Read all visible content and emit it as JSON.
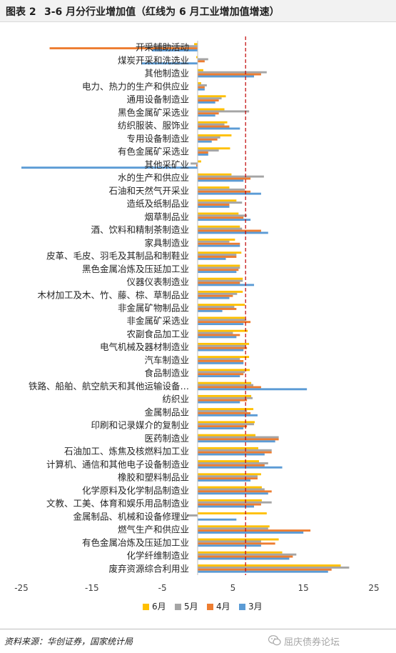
{
  "figure": {
    "label": "图表 2",
    "title": "3-6 月分行业增加值（红线为 6 月工业增加值增速）",
    "source": "资料来源：华创证券，国家统计局",
    "watermark": "屈庆债券论坛"
  },
  "chart_data": {
    "type": "bar",
    "orientation": "horizontal",
    "categories": [
      "开采辅助活动",
      "煤炭开采和洗选业",
      "其他制造业",
      "电力、热力的生产和供应业",
      "通用设备制造业",
      "黑色金属矿采选业",
      "纺织服装、服饰业",
      "专用设备制造业",
      "有色金属矿采选业",
      "其他采矿业",
      "水的生产和供应业",
      "石油和天然气开采业",
      "造纸及纸制品业",
      "烟草制品业",
      "酒、饮料和精制茶制造业",
      "家具制造业",
      "皮革、毛皮、羽毛及其制品和制鞋业",
      "黑色金属冶炼及压延加工业",
      "仪器仪表制造业",
      "木材加工及木、竹、藤、棕、草制品业",
      "非金属矿物制品业",
      "非金属矿采选业",
      "农副食品加工业",
      "电气机械及器材制造业",
      "汽车制造业",
      "食品制造业",
      "铁路、船舶、航空航天和其他运输设备…",
      "纺织业",
      "金属制品业",
      "印刷和记录媒介的复制业",
      "医药制造业",
      "石油加工、炼焦及核燃料加工业",
      "计算机、通信和其他电子设备制造业",
      "橡胶和塑料制品业",
      "化学原料及化学制品制造业",
      "文教、工美、体育和娱乐用品制造业",
      "金属制品、机械和设备修理业",
      "燃气生产和供应业",
      "有色金属冶炼及压延加工业",
      "化学纤维制造业",
      "废弃资源综合利用业"
    ],
    "series": [
      {
        "name": "6月",
        "color": "#FFC000",
        "values": [
          -0.5,
          -0.2,
          0.8,
          0.5,
          4.0,
          3.8,
          4.2,
          4.8,
          4.6,
          0.5,
          4.8,
          4.5,
          5.5,
          5.8,
          6.0,
          5.3,
          6.2,
          6.0,
          6.4,
          6.4,
          6.7,
          6.7,
          7.1,
          7.3,
          7.3,
          7.4,
          7.6,
          7.6,
          7.9,
          8.1,
          8.2,
          8.6,
          8.7,
          9.0,
          9.1,
          9.1,
          9.8,
          10.2,
          11.5,
          12.0,
          20.3
        ]
      },
      {
        "name": "5月",
        "color": "#A5A5A5",
        "values": [
          -7.7,
          1.5,
          9.8,
          1.3,
          3.4,
          7.3,
          3.8,
          3.2,
          3.0,
          -1.0,
          9.4,
          6.7,
          6.3,
          7.0,
          6.3,
          4.5,
          5.5,
          6.0,
          6.4,
          5.6,
          5.2,
          6.9,
          5.0,
          6.8,
          6.0,
          6.7,
          7.9,
          7.8,
          7.0,
          8.0,
          11.5,
          10.5,
          10.0,
          8.5,
          9.5,
          10.5,
          -1.5,
          10.0,
          9.0,
          14.0,
          21.5
        ]
      },
      {
        "name": "4月",
        "color": "#ED7D31",
        "values": [
          -21.0,
          1.0,
          9.0,
          1.0,
          3.0,
          3.0,
          4.5,
          2.8,
          1.5,
          -0.2,
          7.5,
          7.5,
          4.5,
          6.5,
          9.0,
          6.0,
          5.5,
          5.8,
          6.0,
          5.0,
          5.5,
          7.5,
          6.0,
          7.0,
          6.5,
          6.5,
          9.0,
          7.0,
          7.5,
          7.0,
          11.5,
          10.5,
          9.5,
          8.5,
          10.5,
          9.0,
          0.0,
          16.0,
          11.0,
          13.5,
          19.0
        ]
      },
      {
        "name": "3月",
        "color": "#5B9BD5",
        "values": [
          -6.5,
          -8.0,
          8.0,
          1.0,
          2.5,
          2.5,
          6.0,
          2.0,
          1.5,
          -25.0,
          6.5,
          9.0,
          4.5,
          7.5,
          10.0,
          6.0,
          4.0,
          5.5,
          8.0,
          4.5,
          3.5,
          6.5,
          5.5,
          6.5,
          6.5,
          6.0,
          15.5,
          6.0,
          8.5,
          6.5,
          11.0,
          9.5,
          12.0,
          7.5,
          10.0,
          8.0,
          5.5,
          15.0,
          9.0,
          13.0,
          18.5
        ]
      }
    ],
    "xlim": [
      -25,
      25
    ],
    "xticks": [
      -25,
      -15,
      -5,
      5,
      15,
      25
    ],
    "reference_line": {
      "value": 6.8,
      "color": "#C00000",
      "style": "dashed"
    },
    "grid": false,
    "legend_position": "bottom"
  }
}
